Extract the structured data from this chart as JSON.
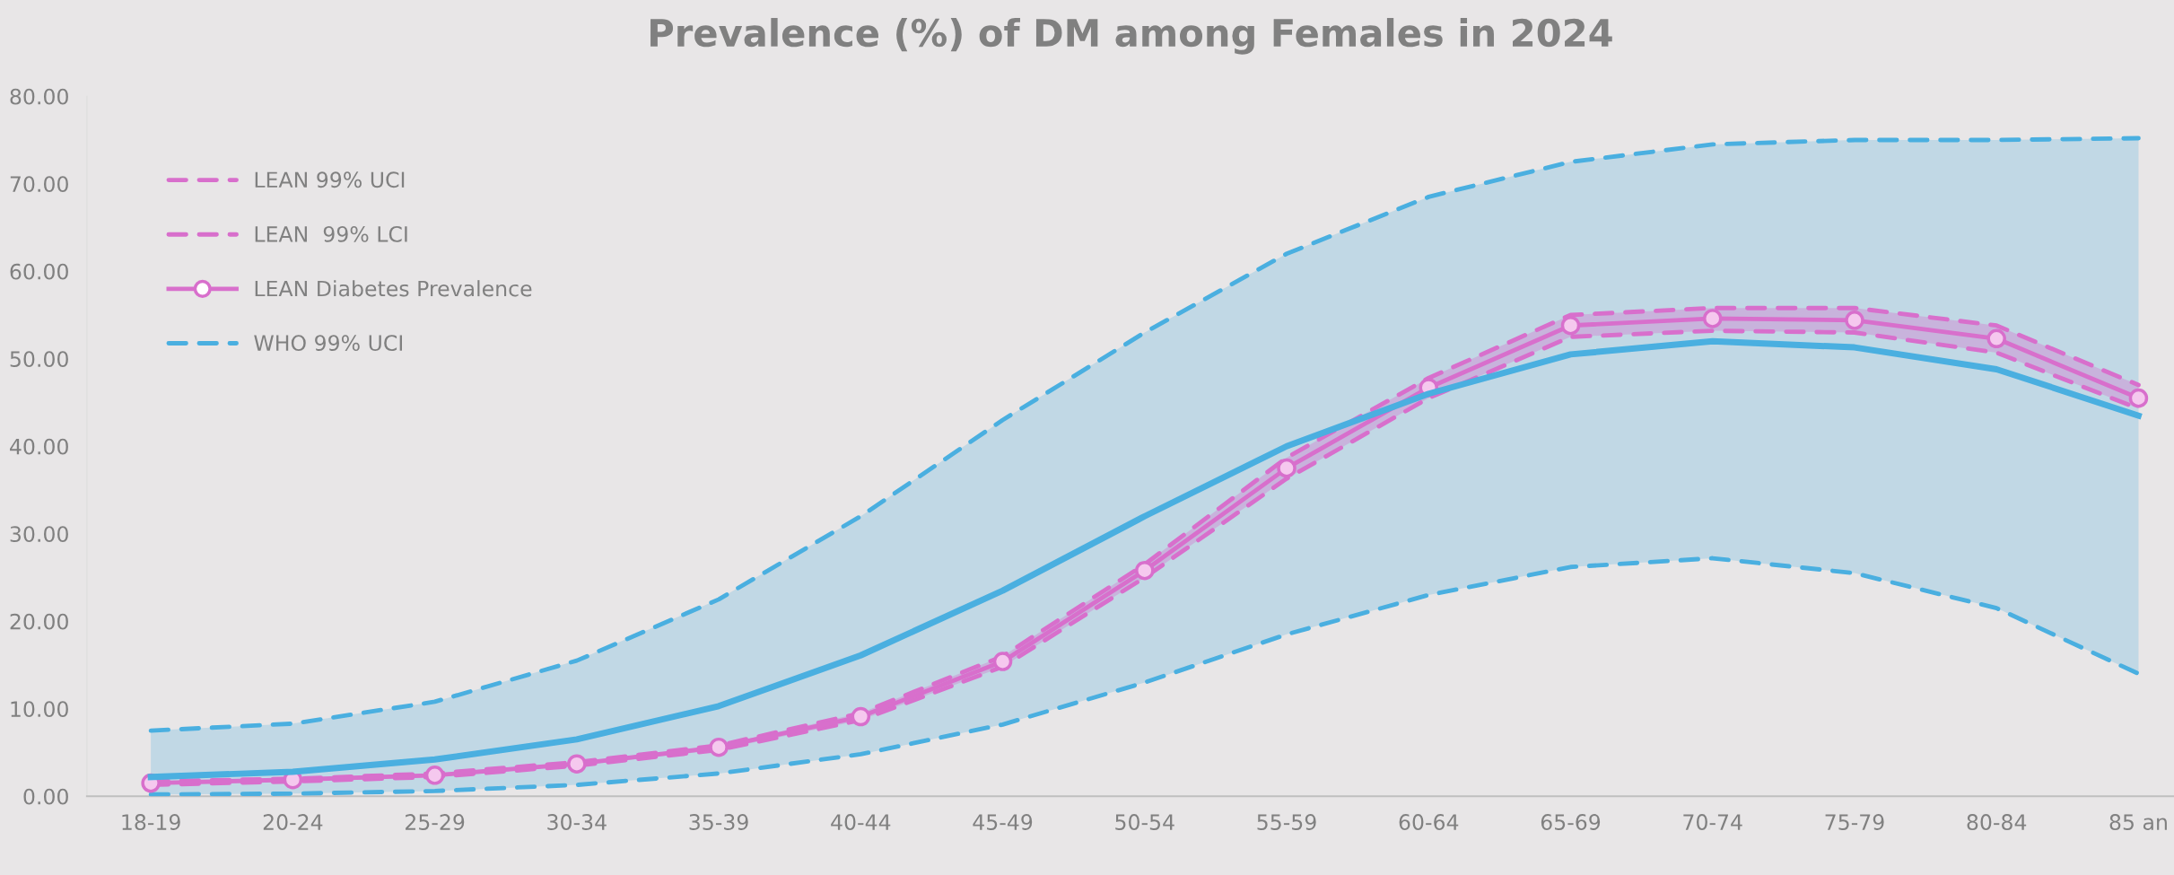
{
  "chart_data": {
    "type": "line",
    "title": "Prevalence (%) of DM among Females in 2024",
    "categories": [
      "18-19",
      "20-24",
      "25-29",
      "30-34",
      "35-39",
      "40-44",
      "45-49",
      "50-54",
      "55-59",
      "60-64",
      "65-69",
      "70-74",
      "75-79",
      "80-84",
      "85 an"
    ],
    "ylim": [
      0,
      80
    ],
    "yticks": [
      {
        "value": 0,
        "label": "0.00"
      },
      {
        "value": 10,
        "label": "10.00"
      },
      {
        "value": 20,
        "label": "20.00"
      },
      {
        "value": 30,
        "label": "30.00"
      },
      {
        "value": 40,
        "label": "40.00"
      },
      {
        "value": 50,
        "label": "50.00"
      },
      {
        "value": 60,
        "label": "60.00"
      },
      {
        "value": 70,
        "label": "70.00"
      },
      {
        "value": 80,
        "label": "80.00"
      }
    ],
    "grid": false,
    "legend": "top left",
    "series": [
      {
        "color": "#4aafe0",
        "line_style": "solid",
        "marker": "none",
        "values": [
          2.2,
          2.8,
          4.2,
          6.5,
          10.3,
          16.1,
          23.5,
          32.0,
          40.0,
          46.0,
          50.5,
          52.0,
          51.3,
          48.8,
          43.5
        ],
        "lower": [
          0.2,
          0.3,
          0.6,
          1.3,
          2.6,
          4.8,
          8.2,
          13.0,
          18.5,
          23.0,
          26.2,
          27.2,
          25.5,
          21.5,
          14.0
        ],
        "upper": [
          7.5,
          8.3,
          10.8,
          15.5,
          22.5,
          32.0,
          43.0,
          53.0,
          62.0,
          68.5,
          72.5,
          74.5,
          75.0,
          75.0,
          75.2
        ]
      },
      {
        "name": "LEAN 99% UCI",
        "color": "#d86fcc",
        "line_style": "dashed",
        "marker": "none",
        "values": [
          1.7,
          2.0,
          2.6,
          3.9,
          5.8,
          9.5,
          16.0,
          26.5,
          38.7,
          47.8,
          55.0,
          55.8,
          55.8,
          53.8,
          47.0
        ]
      },
      {
        "name": "LEAN  99% LCI",
        "color": "#d86fcc",
        "line_style": "dashed",
        "marker": "none",
        "values": [
          1.3,
          1.7,
          2.2,
          3.5,
          5.3,
          8.7,
          14.8,
          25.0,
          36.3,
          45.5,
          52.5,
          53.2,
          53.0,
          50.7,
          44.3
        ]
      },
      {
        "name": "LEAN Diabetes Prevalence",
        "color": "#d86fcc",
        "line_style": "solid",
        "marker": "circle",
        "values": [
          1.5,
          1.9,
          2.4,
          3.7,
          5.6,
          9.1,
          15.4,
          25.8,
          37.5,
          46.7,
          53.8,
          54.6,
          54.4,
          52.3,
          45.5
        ],
        "lower": [
          1.3,
          1.7,
          2.2,
          3.5,
          5.3,
          8.7,
          14.8,
          25.0,
          36.3,
          45.5,
          52.5,
          53.2,
          53.0,
          50.7,
          44.3
        ],
        "upper": [
          1.7,
          2.0,
          2.6,
          3.9,
          5.8,
          9.5,
          16.0,
          26.5,
          38.7,
          47.8,
          55.0,
          55.8,
          55.8,
          53.8,
          47.0
        ]
      },
      {
        "name": "WHO 99% UCI",
        "color": "#4aafe0",
        "line_style": "dashed",
        "marker": "none",
        "values": [
          7.5,
          8.3,
          10.8,
          15.5,
          22.5,
          32.0,
          43.0,
          53.0,
          62.0,
          68.5,
          72.5,
          74.5,
          75.0,
          75.0,
          75.2
        ]
      },
      {
        "color": "#4aafe0",
        "line_style": "dashed",
        "marker": "none",
        "values": [
          0.2,
          0.3,
          0.6,
          1.3,
          2.6,
          4.8,
          8.2,
          13.0,
          18.5,
          23.0,
          26.2,
          27.2,
          25.5,
          21.5,
          14.0
        ]
      }
    ]
  }
}
